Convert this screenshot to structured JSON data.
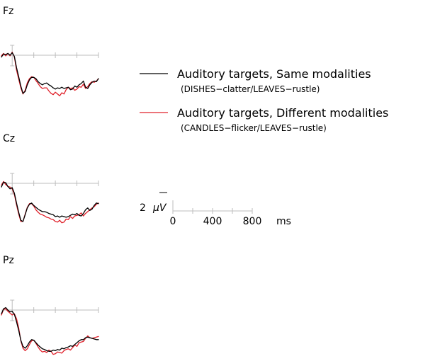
{
  "chart_data": {
    "type": "line",
    "x_unit": "ms",
    "xlim": [
      -100,
      800
    ],
    "ylim": [
      -2.5,
      8.5
    ],
    "y_inverted": true,
    "legend": {
      "placement": "right",
      "entries": [
        {
          "label": "Auditory targets, Same modalities",
          "sublabel": "(DISHES−clatter/LEAVES−rustle)",
          "color": "#000000"
        },
        {
          "label": "Auditory targets, Different modalities",
          "sublabel": "(CANDLES−flicker/LEAVES−rustle)",
          "color": "#e0202a"
        }
      ]
    },
    "scale_bar": {
      "y_value": 2,
      "y_text": "2",
      "y_unit": "μV",
      "x_ticks": [
        0,
        200,
        400,
        600,
        800
      ],
      "x_tick_labels": [
        "0",
        "400",
        "800"
      ],
      "x_tick_label_values": [
        0,
        400,
        800
      ],
      "x_unit": "ms"
    },
    "panels": [
      {
        "name": "Fz",
        "x": [
          -100,
          -80,
          -60,
          -40,
          -20,
          0,
          20,
          40,
          60,
          80,
          100,
          120,
          140,
          160,
          180,
          200,
          220,
          240,
          260,
          280,
          300,
          320,
          340,
          360,
          380,
          400,
          420,
          440,
          460,
          480,
          500,
          520,
          540,
          560,
          580,
          600,
          620,
          640,
          660,
          680,
          700,
          720,
          740,
          760,
          780,
          800
        ],
        "series": [
          {
            "name": "Auditory targets, Same modalities",
            "color": "#000000",
            "values": [
              0.3,
              -0.2,
              -0.1,
              -0.3,
              0.0,
              -0.4,
              0.2,
              2.0,
              3.5,
              5.0,
              6.2,
              5.9,
              4.8,
              4.0,
              3.6,
              3.6,
              3.8,
              4.3,
              4.6,
              4.8,
              4.6,
              4.5,
              4.8,
              5.0,
              5.3,
              5.5,
              5.3,
              5.4,
              5.2,
              5.4,
              5.3,
              5.2,
              5.6,
              5.5,
              5.0,
              5.2,
              4.8,
              4.6,
              4.2,
              5.2,
              5.4,
              4.8,
              4.4,
              4.2,
              4.3,
              3.8
            ]
          },
          {
            "name": "Auditory targets, Different modalities",
            "color": "#e0202a",
            "values": [
              0.1,
              -0.3,
              0.1,
              -0.3,
              0.1,
              -0.5,
              0.3,
              2.4,
              3.9,
              5.3,
              6.3,
              5.7,
              4.5,
              3.8,
              3.5,
              3.6,
              4.1,
              4.6,
              5.1,
              5.4,
              5.3,
              5.3,
              5.8,
              6.2,
              6.4,
              6.0,
              6.3,
              6.6,
              6.1,
              6.3,
              5.6,
              5.2,
              5.4,
              5.3,
              5.7,
              5.5,
              5.1,
              5.2,
              4.7,
              5.4,
              5.1,
              4.6,
              4.3,
              4.4,
              4.2,
              3.8
            ]
          }
        ]
      },
      {
        "name": "Cz",
        "x": [
          -100,
          -80,
          -60,
          -40,
          -20,
          0,
          20,
          40,
          60,
          80,
          100,
          120,
          140,
          160,
          180,
          200,
          220,
          240,
          260,
          280,
          300,
          320,
          340,
          360,
          380,
          400,
          420,
          440,
          460,
          480,
          500,
          520,
          540,
          560,
          580,
          600,
          620,
          640,
          660,
          680,
          700,
          720,
          740,
          760,
          780,
          800
        ],
        "series": [
          {
            "name": "Auditory targets, Same modalities",
            "color": "#000000",
            "values": [
              0.6,
              -0.2,
              -0.1,
              0.5,
              0.9,
              0.7,
              1.6,
              3.2,
              4.7,
              6.0,
              6.2,
              5.1,
              4.0,
              3.4,
              3.2,
              3.6,
              3.9,
              4.2,
              4.4,
              4.6,
              4.6,
              4.7,
              4.9,
              5.0,
              5.1,
              5.4,
              5.3,
              5.5,
              5.3,
              5.4,
              5.5,
              5.4,
              5.2,
              5.0,
              5.1,
              4.9,
              5.2,
              5.3,
              4.9,
              4.3,
              4.0,
              4.4,
              4.2,
              3.6,
              3.2,
              3.3
            ]
          },
          {
            "name": "Auditory targets, Different modalities",
            "color": "#e0202a",
            "values": [
              0.3,
              -0.3,
              0.2,
              0.5,
              0.6,
              0.9,
              1.8,
              3.5,
              5.0,
              6.2,
              6.2,
              5.0,
              3.9,
              3.3,
              3.3,
              3.7,
              4.3,
              4.7,
              5.0,
              5.1,
              5.3,
              5.5,
              5.6,
              5.8,
              5.9,
              6.2,
              6.3,
              6.0,
              6.4,
              6.3,
              5.8,
              5.9,
              5.4,
              5.7,
              5.3,
              5.2,
              5.1,
              4.8,
              5.3,
              4.9,
              4.6,
              4.3,
              4.0,
              3.8,
              3.4,
              3.2
            ]
          }
        ]
      },
      {
        "name": "Pz",
        "x": [
          -100,
          -80,
          -60,
          -40,
          -20,
          0,
          20,
          40,
          60,
          80,
          100,
          120,
          140,
          160,
          180,
          200,
          220,
          240,
          260,
          280,
          300,
          320,
          340,
          360,
          380,
          400,
          420,
          440,
          460,
          480,
          500,
          520,
          540,
          560,
          580,
          600,
          620,
          640,
          660,
          680,
          700,
          720,
          740,
          760,
          780,
          800
        ],
        "series": [
          {
            "name": "Auditory targets, Same modalities",
            "color": "#000000",
            "values": [
              0.6,
              -0.2,
              -0.4,
              0.0,
              0.3,
              0.2,
              0.7,
              1.9,
              3.3,
              4.9,
              5.9,
              6.2,
              5.8,
              5.2,
              4.8,
              4.9,
              5.3,
              5.7,
              6.0,
              6.3,
              6.4,
              6.6,
              6.7,
              6.7,
              6.5,
              6.6,
              6.4,
              6.5,
              6.2,
              6.3,
              6.1,
              6.0,
              5.8,
              5.9,
              5.6,
              5.3,
              5.0,
              4.8,
              4.8,
              4.5,
              4.4,
              4.5,
              4.6,
              4.7,
              4.8,
              4.8
            ]
          },
          {
            "name": "Auditory targets, Different modalities",
            "color": "#e0202a",
            "values": [
              0.8,
              -0.1,
              -0.2,
              0.2,
              0.5,
              0.8,
              0.6,
              1.4,
              2.9,
              5.0,
              6.2,
              6.6,
              6.3,
              5.6,
              5.0,
              4.9,
              5.4,
              6.0,
              6.5,
              6.8,
              6.7,
              6.9,
              6.5,
              6.7,
              7.2,
              7.1,
              6.8,
              6.9,
              7.0,
              6.6,
              6.4,
              6.3,
              6.5,
              6.1,
              5.7,
              5.9,
              5.3,
              5.2,
              5.1,
              4.6,
              4.2,
              4.5,
              4.6,
              4.5,
              4.4,
              4.3
            ]
          }
        ]
      }
    ]
  }
}
